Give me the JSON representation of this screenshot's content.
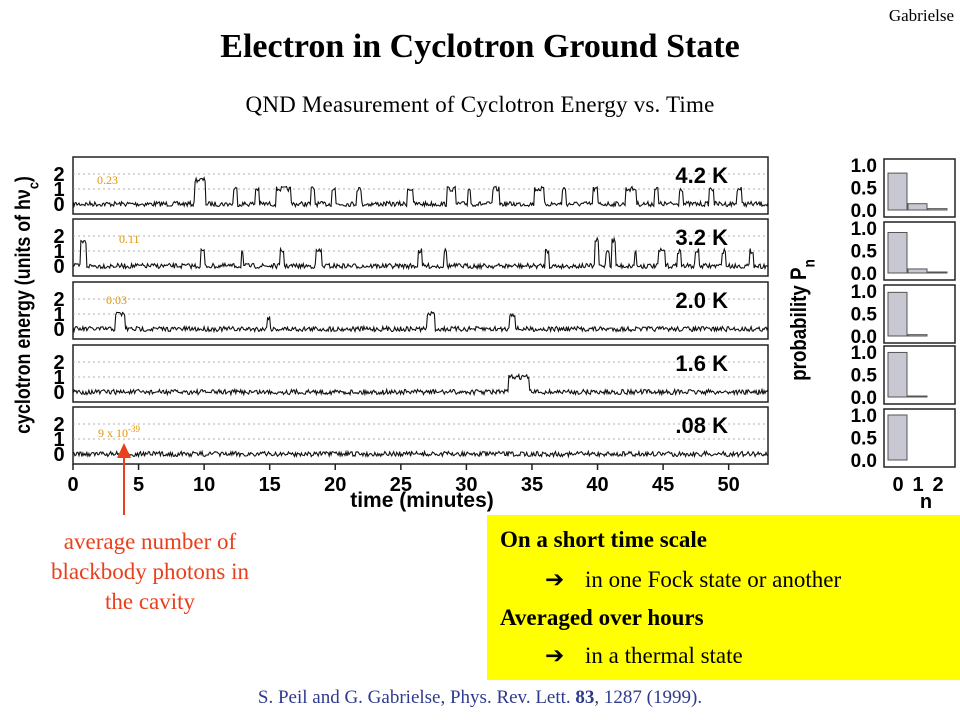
{
  "slide": {
    "author": "Gabrielse",
    "title": "Electron in Cyclotron Ground State",
    "subtitle": "QND Measurement of Cyclotron Energy vs. Time",
    "annotation": "average number of blackbody photons in the cavity",
    "box": {
      "line1": "On a short time scale",
      "arrow_icon": "right-arrow-icon",
      "line2": "in one Fock state or another",
      "line3": "Averaged over hours",
      "line4": "in a thermal state"
    },
    "reference": {
      "authors": "S. Peil and G. Gabrielse, Phys. Rev. Lett. ",
      "volume": "83",
      "rest": ", 1287 (1999)."
    }
  },
  "chart_data": [
    {
      "type": "line",
      "title": "",
      "xlabel": "time (minutes)",
      "ylabel": "cyclotron energy (units of hν",
      "ylabel_sub": "c",
      "ylabel_end": ")",
      "xlim": [
        0,
        53
      ],
      "x_ticks": [
        0,
        5,
        10,
        15,
        20,
        25,
        30,
        35,
        40,
        45,
        50
      ],
      "y_ticks": [
        0,
        1,
        2
      ],
      "panels": [
        {
          "temperature": "4.2 K",
          "mean_photons": "0.23",
          "excitations": [
            [
              9.3,
              10.1,
              1.6
            ],
            [
              12.2,
              12.5,
              1
            ],
            [
              13.9,
              14.2,
              1
            ],
            [
              15.5,
              16.6,
              1
            ],
            [
              18.1,
              18.4,
              1
            ],
            [
              19.7,
              20.0,
              1
            ],
            [
              21.6,
              22.0,
              1
            ],
            [
              25.5,
              25.9,
              1
            ],
            [
              28.5,
              29.2,
              1
            ],
            [
              30.1,
              30.3,
              1
            ],
            [
              32.0,
              32.5,
              1
            ],
            [
              35.2,
              35.9,
              1
            ],
            [
              37.3,
              37.6,
              1
            ],
            [
              39.6,
              40.0,
              1
            ],
            [
              42.1,
              43.0,
              1
            ],
            [
              44.3,
              44.6,
              1
            ],
            [
              46.2,
              46.5,
              1
            ],
            [
              48.5,
              48.9,
              1
            ],
            [
              50.6,
              51.0,
              1
            ]
          ]
        },
        {
          "temperature": "3.2 K",
          "mean_photons": "0.11",
          "excitations": [
            [
              0.6,
              1.0,
              1.6
            ],
            [
              9.7,
              10.0,
              1
            ],
            [
              12.8,
              13.0,
              1
            ],
            [
              15.8,
              16.1,
              1
            ],
            [
              18.5,
              19.0,
              1
            ],
            [
              26.3,
              26.6,
              1
            ],
            [
              28.3,
              28.5,
              1
            ],
            [
              36.0,
              36.3,
              1
            ],
            [
              39.8,
              40.1,
              1.7
            ],
            [
              40.6,
              40.9,
              1
            ],
            [
              41.1,
              41.4,
              1.7
            ],
            [
              42.8,
              43.0,
              1
            ],
            [
              44.6,
              45.2,
              1
            ],
            [
              46.1,
              46.4,
              1
            ],
            [
              47.4,
              47.7,
              1
            ],
            [
              49.5,
              49.8,
              1
            ],
            [
              51.6,
              51.9,
              1
            ]
          ]
        },
        {
          "temperature": "2.0 K",
          "mean_photons": "0.03",
          "excitations": [
            [
              3.2,
              4.0,
              1
            ],
            [
              14.8,
              15.0,
              0.8
            ],
            [
              27.0,
              27.6,
              1
            ],
            [
              33.3,
              33.7,
              1
            ]
          ]
        },
        {
          "temperature": "1.6 K",
          "mean_photons": "",
          "excitations": [
            [
              33.2,
              34.8,
              1
            ]
          ]
        },
        {
          "temperature": ".08 K",
          "mean_photons": "9 x 10",
          "mean_photons_exp": "-39",
          "excitations": []
        }
      ]
    },
    {
      "type": "bar",
      "title": "",
      "xlabel": "n",
      "ylabel": "probability P",
      "ylabel_sub": "n",
      "categories": [
        "0",
        "1",
        "2"
      ],
      "ylim": [
        0,
        1.0
      ],
      "y_ticks": [
        "0.0",
        "0.5",
        "1.0"
      ],
      "panels": [
        {
          "temperature": "4.2 K",
          "values": [
            0.82,
            0.14,
            0.03
          ]
        },
        {
          "temperature": "3.2 K",
          "values": [
            0.9,
            0.09,
            0.01
          ]
        },
        {
          "temperature": "2.0 K",
          "values": [
            0.97,
            0.03,
            0.0
          ]
        },
        {
          "temperature": "1.6 K",
          "values": [
            0.99,
            0.01,
            0.0
          ]
        },
        {
          "temperature": ".08 K",
          "values": [
            1.0,
            0.0,
            0.0
          ]
        }
      ]
    }
  ]
}
